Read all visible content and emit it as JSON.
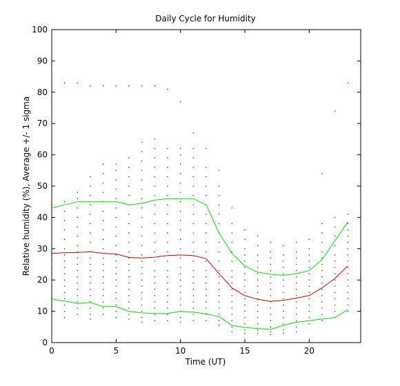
{
  "chart_data": {
    "type": "line",
    "title": "Daily Cycle for Humidity",
    "xlabel": "Time (UT)",
    "ylabel": "Relative humidity (%), Average +/- 1 sigma",
    "xlim": [
      0,
      24
    ],
    "ylim": [
      0,
      100
    ],
    "xticks": [
      0,
      5,
      10,
      15,
      20
    ],
    "yticks": [
      0,
      10,
      20,
      30,
      40,
      50,
      60,
      70,
      80,
      90,
      100
    ],
    "grid": false,
    "legend": "none",
    "series": [
      {
        "role": "upper",
        "color": "#00dd00",
        "x": [
          0,
          1,
          2,
          3,
          4,
          5,
          6,
          7,
          8,
          9,
          10,
          11,
          12,
          13,
          14,
          15,
          16,
          17,
          18,
          19,
          20,
          21,
          22,
          23
        ],
        "values": [
          43,
          44,
          45,
          45,
          45,
          45,
          44,
          44.5,
          45.5,
          46,
          46,
          46,
          44,
          35,
          28.5,
          24.5,
          22.5,
          21.8,
          21.5,
          22,
          23,
          26.5,
          32.5,
          38.5
        ]
      },
      {
        "role": "mean",
        "color": "#cc0000",
        "x": [
          0,
          1,
          2,
          3,
          4,
          5,
          6,
          7,
          8,
          9,
          10,
          11,
          12,
          13,
          14,
          15,
          16,
          17,
          18,
          19,
          20,
          21,
          22,
          23
        ],
        "values": [
          28.5,
          28.7,
          28.8,
          29,
          28.5,
          28.3,
          27.2,
          27,
          27.3,
          27.8,
          28,
          27.8,
          26.8,
          22,
          17.5,
          15,
          13.8,
          13.2,
          13.5,
          14.2,
          15,
          17.5,
          20.5,
          24.5
        ]
      },
      {
        "role": "lower",
        "color": "#00dd00",
        "x": [
          0,
          1,
          2,
          3,
          4,
          5,
          6,
          7,
          8,
          9,
          10,
          11,
          12,
          13,
          14,
          15,
          16,
          17,
          18,
          19,
          20,
          21,
          22,
          23
        ],
        "values": [
          13.8,
          13.3,
          12.5,
          12.8,
          11.5,
          11.5,
          10,
          9.5,
          9.3,
          9.3,
          10,
          9.7,
          9.2,
          8.3,
          5.5,
          4.8,
          4.5,
          4.2,
          5.5,
          6.5,
          7,
          7.5,
          8,
          10.5
        ]
      }
    ],
    "scatter_color": "#000000",
    "scatter": [
      {
        "x": 0,
        "values": [
          83,
          44,
          40,
          37,
          34,
          31,
          28,
          26,
          24,
          22,
          20,
          18,
          16,
          14,
          12,
          10
        ]
      },
      {
        "x": 1,
        "values": [
          83,
          45,
          42,
          39,
          36,
          33,
          30,
          28,
          26,
          24,
          22,
          20,
          18,
          16,
          14,
          12,
          10,
          8
        ]
      },
      {
        "x": 2,
        "values": [
          83,
          48,
          46,
          43,
          40,
          37,
          34,
          31,
          29,
          27,
          25,
          23,
          21,
          19,
          17,
          15,
          13,
          11,
          9
        ]
      },
      {
        "x": 3,
        "values": [
          82,
          53,
          50,
          47,
          44,
          41,
          38,
          35,
          32,
          29,
          27,
          25,
          23,
          21,
          19,
          17,
          15,
          13,
          11,
          9,
          7.5
        ]
      },
      {
        "x": 4,
        "values": [
          82,
          57,
          54,
          51,
          48,
          45,
          42,
          39,
          36,
          33,
          30,
          27,
          25,
          23,
          21,
          19,
          17,
          15,
          13,
          11,
          9
        ]
      },
      {
        "x": 5,
        "values": [
          82,
          57,
          55,
          52,
          49,
          46,
          43,
          40,
          37,
          34,
          31,
          28,
          26,
          24,
          22,
          20,
          18,
          16,
          14,
          12,
          10,
          8
        ]
      },
      {
        "x": 6,
        "values": [
          82,
          59,
          56,
          53,
          50,
          47,
          44,
          41,
          38,
          35,
          32,
          29,
          27,
          25,
          23,
          21,
          19,
          17,
          15,
          13,
          11,
          9,
          7.5
        ]
      },
      {
        "x": 7,
        "values": [
          82,
          64,
          61,
          58,
          55,
          52,
          49,
          46,
          43,
          40,
          37,
          34,
          31,
          28,
          26,
          24,
          22,
          20,
          18,
          16,
          14,
          12,
          10,
          8,
          6.5
        ]
      },
      {
        "x": 8,
        "values": [
          82,
          65,
          62,
          59,
          56,
          53,
          50,
          47,
          44,
          41,
          38,
          35,
          32,
          29,
          26,
          23,
          21,
          19,
          17,
          15,
          13,
          11,
          9,
          7
        ]
      },
      {
        "x": 9,
        "values": [
          81,
          62,
          59,
          56,
          53,
          50,
          47,
          44,
          41,
          38,
          35,
          32,
          29,
          26,
          23,
          21,
          19,
          17,
          15,
          13,
          11,
          9,
          7
        ]
      },
      {
        "x": 10,
        "values": [
          77,
          62,
          60,
          57,
          54,
          51,
          48,
          45,
          42,
          39,
          36,
          33,
          30,
          27,
          24,
          22,
          20,
          18,
          16,
          14,
          12,
          10,
          8,
          6.5
        ]
      },
      {
        "x": 11,
        "values": [
          67,
          62,
          59,
          56,
          53,
          50,
          47,
          44,
          41,
          38,
          35,
          32,
          29,
          26,
          23,
          21,
          19,
          17,
          15,
          13,
          11,
          9,
          7
        ]
      },
      {
        "x": 12,
        "values": [
          62,
          56,
          53,
          50,
          47,
          44,
          41,
          38,
          35,
          32,
          29,
          26,
          23,
          21,
          19,
          17,
          15,
          13,
          11,
          9,
          7
        ]
      },
      {
        "x": 13,
        "values": [
          55,
          50,
          47,
          44,
          41,
          38,
          35,
          32,
          29,
          26,
          23,
          21,
          19,
          17,
          15,
          13,
          11,
          9,
          7,
          5.5
        ]
      },
      {
        "x": 14,
        "values": [
          43,
          38,
          35,
          32,
          29,
          26,
          23,
          21,
          19,
          17,
          15,
          13,
          11,
          9,
          7,
          5,
          3.5
        ]
      },
      {
        "x": 15,
        "values": [
          36,
          33,
          30,
          28,
          26,
          24,
          22,
          20,
          18,
          16,
          14,
          12,
          10,
          8,
          6,
          4,
          3
        ]
      },
      {
        "x": 16,
        "values": [
          34,
          31,
          28,
          26,
          24,
          22,
          20,
          18,
          16,
          14,
          12,
          10,
          8,
          6,
          4,
          3
        ]
      },
      {
        "x": 17,
        "values": [
          32,
          29,
          27,
          25,
          23,
          21,
          19,
          17,
          15,
          13,
          11,
          9,
          7,
          5,
          3.5,
          2.5
        ]
      },
      {
        "x": 18,
        "values": [
          31,
          28,
          26,
          24,
          22,
          20,
          18,
          16,
          14,
          12,
          10,
          8,
          6,
          4,
          3
        ]
      },
      {
        "x": 19,
        "values": [
          32,
          29,
          27,
          25,
          23,
          21,
          19,
          17,
          15,
          13,
          11,
          9,
          7,
          5,
          3.5
        ]
      },
      {
        "x": 20,
        "values": [
          33,
          30,
          28,
          26,
          24,
          22,
          20,
          18,
          16,
          14,
          12,
          10,
          8,
          6
        ]
      },
      {
        "x": 21,
        "values": [
          54,
          38,
          35,
          32,
          29,
          27,
          25,
          23,
          21,
          19,
          17,
          15,
          13,
          11,
          9,
          7
        ]
      },
      {
        "x": 22,
        "values": [
          74,
          40,
          37,
          34,
          31,
          28,
          26,
          24,
          22,
          20,
          18,
          16,
          14,
          12,
          10,
          8
        ]
      },
      {
        "x": 23,
        "values": [
          83,
          41,
          38,
          36,
          34,
          32,
          30,
          28,
          26,
          24,
          22,
          20,
          18,
          16,
          14,
          12,
          10
        ]
      }
    ]
  }
}
